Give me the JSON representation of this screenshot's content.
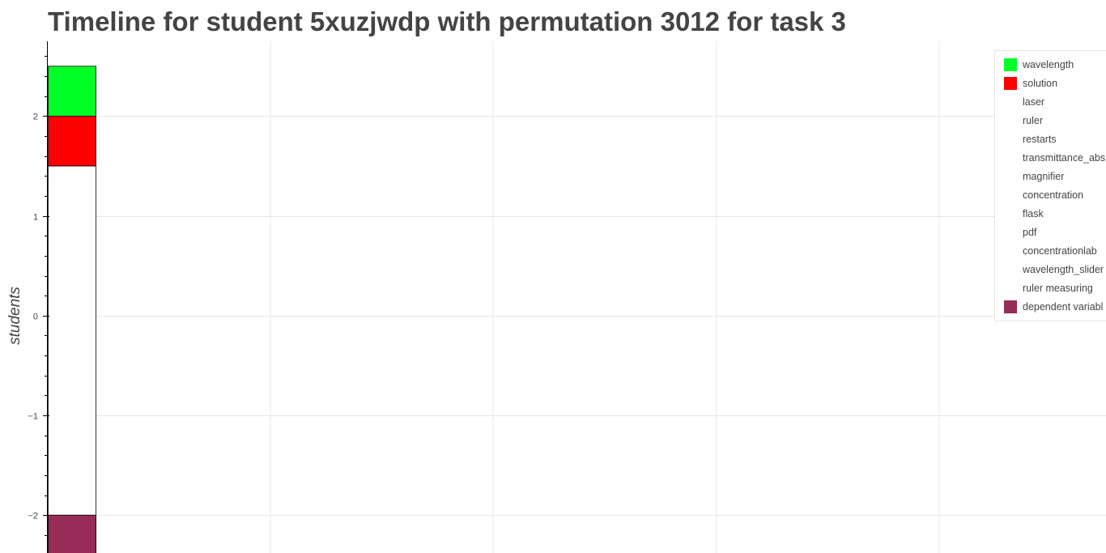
{
  "chart_data": {
    "type": "bar",
    "title": "Timeline for student 5xuzjwdp with permutation 3012 for task 3",
    "ylabel": "students",
    "xlabel": "",
    "ylim": [
      -2.38,
      2.75
    ],
    "xlim": [
      0,
      1
    ],
    "y_ticks": [
      -2,
      -1,
      0,
      1,
      2
    ],
    "y_tick_labels": [
      "−2",
      "−1",
      "0",
      "1",
      "2"
    ],
    "grid": true,
    "legend_position": "top-right",
    "series": [
      {
        "name": "wavelength",
        "color": "#00ff26",
        "bottom": 2.0,
        "top": 2.5
      },
      {
        "name": "solution",
        "color": "#ff0000",
        "bottom": 1.5,
        "top": 2.0
      },
      {
        "name": "laser",
        "color": "#ffffff"
      },
      {
        "name": "ruler",
        "color": "#ffffff"
      },
      {
        "name": "restarts",
        "color": "#ffffff"
      },
      {
        "name": "transmittance_abs",
        "color": "#ffffff"
      },
      {
        "name": "magnifier",
        "color": "#ffffff"
      },
      {
        "name": "concentration",
        "color": "#ffffff"
      },
      {
        "name": "flask",
        "color": "#ffffff"
      },
      {
        "name": "pdf",
        "color": "#ffffff"
      },
      {
        "name": "concentrationlab",
        "color": "#ffffff"
      },
      {
        "name": "wavelength_slider",
        "color": "#ffffff"
      },
      {
        "name": "ruler measuring",
        "color": "#ffffff"
      },
      {
        "name": "dependent variabl",
        "color": "#972c56",
        "bottom": -2.5,
        "top": -2.0
      }
    ],
    "background_bar": {
      "bottom": -2.5,
      "top": 1.5,
      "color": "#ffffff"
    }
  }
}
